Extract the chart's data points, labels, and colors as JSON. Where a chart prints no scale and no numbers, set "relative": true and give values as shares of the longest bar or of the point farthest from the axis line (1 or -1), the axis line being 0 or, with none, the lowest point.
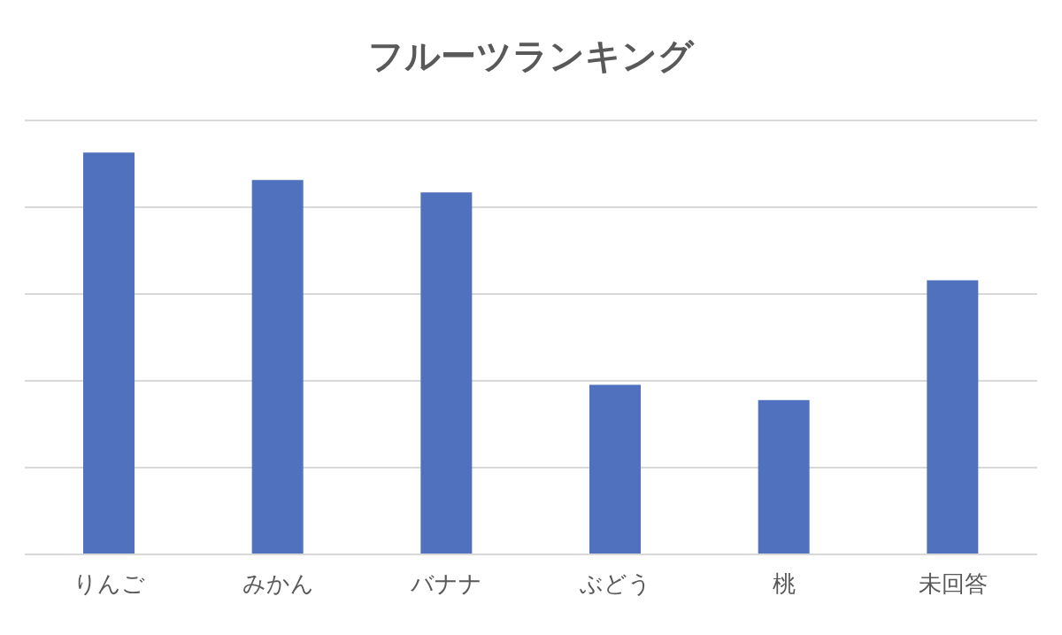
{
  "chart_data": {
    "type": "bar",
    "title": "フルーツランキング",
    "categories": [
      "りんご",
      "みかん",
      "バナナ",
      "ぶどう",
      "桃",
      "未回答"
    ],
    "values": [
      1,
      0.932,
      0.901,
      0.422,
      0.384,
      0.682
    ],
    "color": "#4f71be",
    "relative": true,
    "grid": "y"
  }
}
